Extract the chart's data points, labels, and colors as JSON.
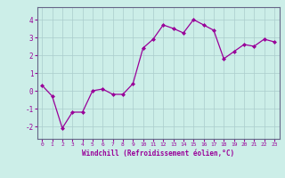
{
  "x": [
    0,
    1,
    2,
    3,
    4,
    5,
    6,
    7,
    8,
    9,
    10,
    11,
    12,
    13,
    14,
    15,
    16,
    17,
    18,
    19,
    20,
    21,
    22,
    23
  ],
  "y": [
    0.3,
    -0.3,
    -2.1,
    -1.2,
    -1.2,
    0.0,
    0.1,
    -0.2,
    -0.2,
    0.4,
    2.4,
    2.9,
    3.7,
    3.5,
    3.25,
    4.0,
    3.7,
    3.4,
    1.8,
    2.2,
    2.6,
    2.5,
    2.9,
    2.75
  ],
  "line_color": "#990099",
  "marker": "D",
  "marker_size": 2,
  "xlabel": "Windchill (Refroidissement éolien,°C)",
  "xlim": [
    -0.5,
    23.5
  ],
  "ylim": [
    -2.7,
    4.7
  ],
  "yticks": [
    -2,
    -1,
    0,
    1,
    2,
    3,
    4
  ],
  "xticks": [
    0,
    1,
    2,
    3,
    4,
    5,
    6,
    7,
    8,
    9,
    10,
    11,
    12,
    13,
    14,
    15,
    16,
    17,
    18,
    19,
    20,
    21,
    22,
    23
  ],
  "background_color": "#cceee8",
  "grid_color": "#aacccc",
  "spine_color": "#666688"
}
